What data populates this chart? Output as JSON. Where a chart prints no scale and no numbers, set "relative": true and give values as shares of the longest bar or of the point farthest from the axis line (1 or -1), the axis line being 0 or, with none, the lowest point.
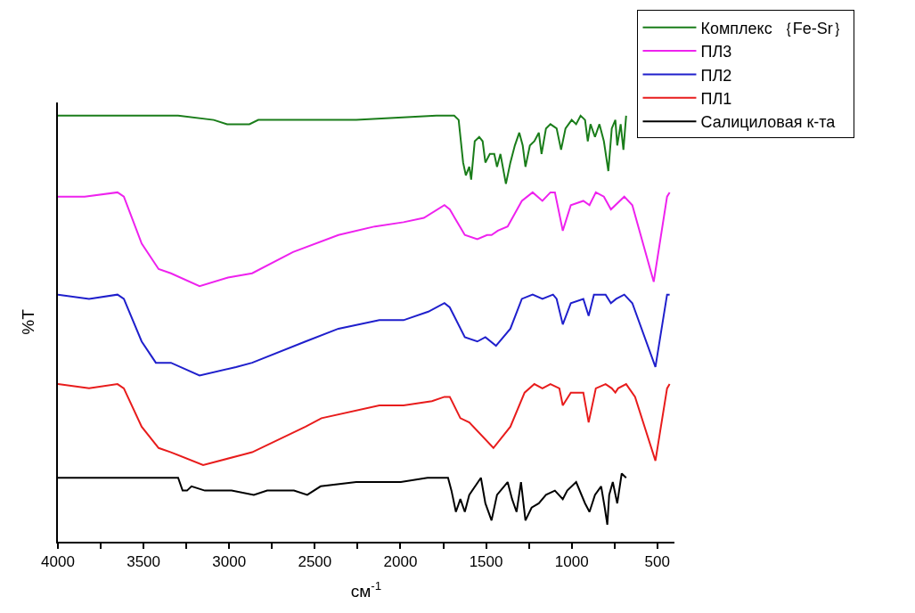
{
  "chart_data": {
    "type": "line",
    "relative": true,
    "xlabel": "см$^{-1}$",
    "ylabel": "%T",
    "xlim": [
      4000,
      400
    ],
    "xticks": [
      4000,
      {
        "value": 3750,
        "label": null
      },
      3500,
      {
        "value": 3250,
        "label": null
      },
      3000,
      {
        "value": 2750,
        "label": null
      },
      2500,
      {
        "value": 2250,
        "label": null
      },
      2000,
      {
        "value": 1750,
        "label": null
      },
      1500,
      {
        "value": 1250,
        "label": null
      },
      1000,
      {
        "value": 750,
        "label": null
      },
      500
    ],
    "grid": false,
    "legend": "top right",
    "marker": "none",
    "line_style": "solid",
    "series": [
      {
        "name": "Комплекс ｛Fe-Sr｝",
        "color": "#1a7d1a",
        "x": [
          4000,
          3298,
          3090,
          3012,
          2976,
          2882,
          2830,
          2518,
          2258,
          1790,
          1686,
          1660,
          1634,
          1618,
          1598,
          1587,
          1566,
          1540,
          1520,
          1504,
          1478,
          1452,
          1436,
          1416,
          1384,
          1358,
          1332,
          1306,
          1286,
          1270,
          1244,
          1218,
          1192,
          1176,
          1150,
          1124,
          1088,
          1062,
          1036,
          1000,
          974,
          948,
          922,
          906,
          890,
          864,
          838,
          812,
          786,
          766,
          745,
          734,
          714,
          698,
          682
        ],
        "values": [
          1.0,
          1.0,
          0.99,
          0.98,
          0.98,
          0.98,
          0.99,
          0.99,
          0.99,
          1.0,
          1.0,
          0.99,
          0.89,
          0.86,
          0.88,
          0.85,
          0.94,
          0.95,
          0.94,
          0.89,
          0.91,
          0.91,
          0.88,
          0.91,
          0.84,
          0.89,
          0.93,
          0.96,
          0.93,
          0.88,
          0.93,
          0.94,
          0.96,
          0.91,
          0.97,
          0.98,
          0.97,
          0.92,
          0.97,
          0.99,
          0.98,
          1.0,
          0.99,
          0.94,
          0.98,
          0.95,
          0.98,
          0.94,
          0.87,
          0.97,
          0.99,
          0.93,
          0.98,
          0.92,
          1.0
        ]
      },
      {
        "name": "ПЛ3",
        "color": "#ee22ee",
        "x": [
          4000,
          3844,
          3652,
          3615,
          3511,
          3412,
          3340,
          3173,
          3007,
          2866,
          2627,
          2362,
          2149,
          1982,
          1863,
          1743,
          1712,
          1624,
          1551,
          1494,
          1468,
          1431,
          1374,
          1291,
          1228,
          1171,
          1124,
          1098,
          1052,
          1005,
          932,
          896,
          859,
          812,
          771,
          693,
          646,
          521,
          443,
          428
        ],
        "values": [
          0.81,
          0.81,
          0.82,
          0.81,
          0.7,
          0.64,
          0.63,
          0.6,
          0.62,
          0.63,
          0.68,
          0.72,
          0.74,
          0.75,
          0.76,
          0.79,
          0.78,
          0.72,
          0.71,
          0.72,
          0.72,
          0.73,
          0.74,
          0.8,
          0.82,
          0.8,
          0.82,
          0.82,
          0.73,
          0.79,
          0.8,
          0.79,
          0.82,
          0.81,
          0.78,
          0.81,
          0.79,
          0.61,
          0.81,
          0.82
        ]
      },
      {
        "name": "ПЛ2",
        "color": "#1f1fcc",
        "x": [
          4000,
          3818,
          3652,
          3615,
          3511,
          3428,
          3340,
          3173,
          2960,
          2866,
          2554,
          2362,
          2123,
          1982,
          1837,
          1743,
          1712,
          1624,
          1551,
          1504,
          1442,
          1358,
          1291,
          1228,
          1171,
          1109,
          1088,
          1052,
          1005,
          932,
          901,
          870,
          802,
          771,
          740,
          693,
          646,
          511,
          443,
          428
        ],
        "values": [
          0.58,
          0.57,
          0.58,
          0.57,
          0.47,
          0.42,
          0.42,
          0.39,
          0.41,
          0.42,
          0.47,
          0.5,
          0.52,
          0.52,
          0.54,
          0.56,
          0.55,
          0.48,
          0.47,
          0.48,
          0.46,
          0.5,
          0.57,
          0.58,
          0.57,
          0.58,
          0.57,
          0.51,
          0.56,
          0.57,
          0.53,
          0.58,
          0.58,
          0.56,
          0.57,
          0.58,
          0.56,
          0.41,
          0.58,
          0.58
        ]
      },
      {
        "name": "ПЛ1",
        "color": "#e81c1c",
        "x": [
          4000,
          3818,
          3652,
          3615,
          3511,
          3412,
          3340,
          3152,
          2866,
          2554,
          2461,
          2123,
          1982,
          1816,
          1743,
          1712,
          1650,
          1598,
          1457,
          1358,
          1275,
          1218,
          1171,
          1124,
          1072,
          1052,
          1005,
          932,
          901,
          859,
          802,
          766,
          745,
          729,
          682,
          630,
          511,
          443,
          428
        ],
        "values": [
          0.37,
          0.36,
          0.37,
          0.36,
          0.27,
          0.22,
          0.21,
          0.18,
          0.21,
          0.27,
          0.29,
          0.32,
          0.32,
          0.33,
          0.34,
          0.34,
          0.29,
          0.28,
          0.22,
          0.27,
          0.35,
          0.37,
          0.36,
          0.37,
          0.36,
          0.32,
          0.35,
          0.35,
          0.28,
          0.36,
          0.37,
          0.36,
          0.35,
          0.36,
          0.37,
          0.34,
          0.19,
          0.36,
          0.37
        ]
      },
      {
        "name": "Салициловая к-та",
        "color": "#000000",
        "x": [
          4000,
          3402,
          3298,
          3272,
          3246,
          3220,
          3142,
          2986,
          2856,
          2778,
          2622,
          2544,
          2466,
          2258,
          1998,
          1842,
          1722,
          1702,
          1676,
          1650,
          1624,
          1598,
          1530,
          1504,
          1468,
          1436,
          1374,
          1348,
          1322,
          1296,
          1270,
          1234,
          1192,
          1150,
          1098,
          1052,
          1026,
          974,
          922,
          896,
          864,
          828,
          807,
          792,
          781,
          760,
          734,
          708,
          682
        ],
        "values": [
          0.15,
          0.15,
          0.15,
          0.12,
          0.12,
          0.13,
          0.12,
          0.12,
          0.11,
          0.12,
          0.12,
          0.11,
          0.13,
          0.14,
          0.14,
          0.15,
          0.15,
          0.12,
          0.07,
          0.1,
          0.07,
          0.11,
          0.15,
          0.09,
          0.05,
          0.11,
          0.14,
          0.1,
          0.07,
          0.14,
          0.05,
          0.08,
          0.09,
          0.11,
          0.12,
          0.1,
          0.12,
          0.14,
          0.09,
          0.07,
          0.11,
          0.13,
          0.08,
          0.04,
          0.11,
          0.14,
          0.09,
          0.16,
          0.15
        ]
      }
    ]
  }
}
